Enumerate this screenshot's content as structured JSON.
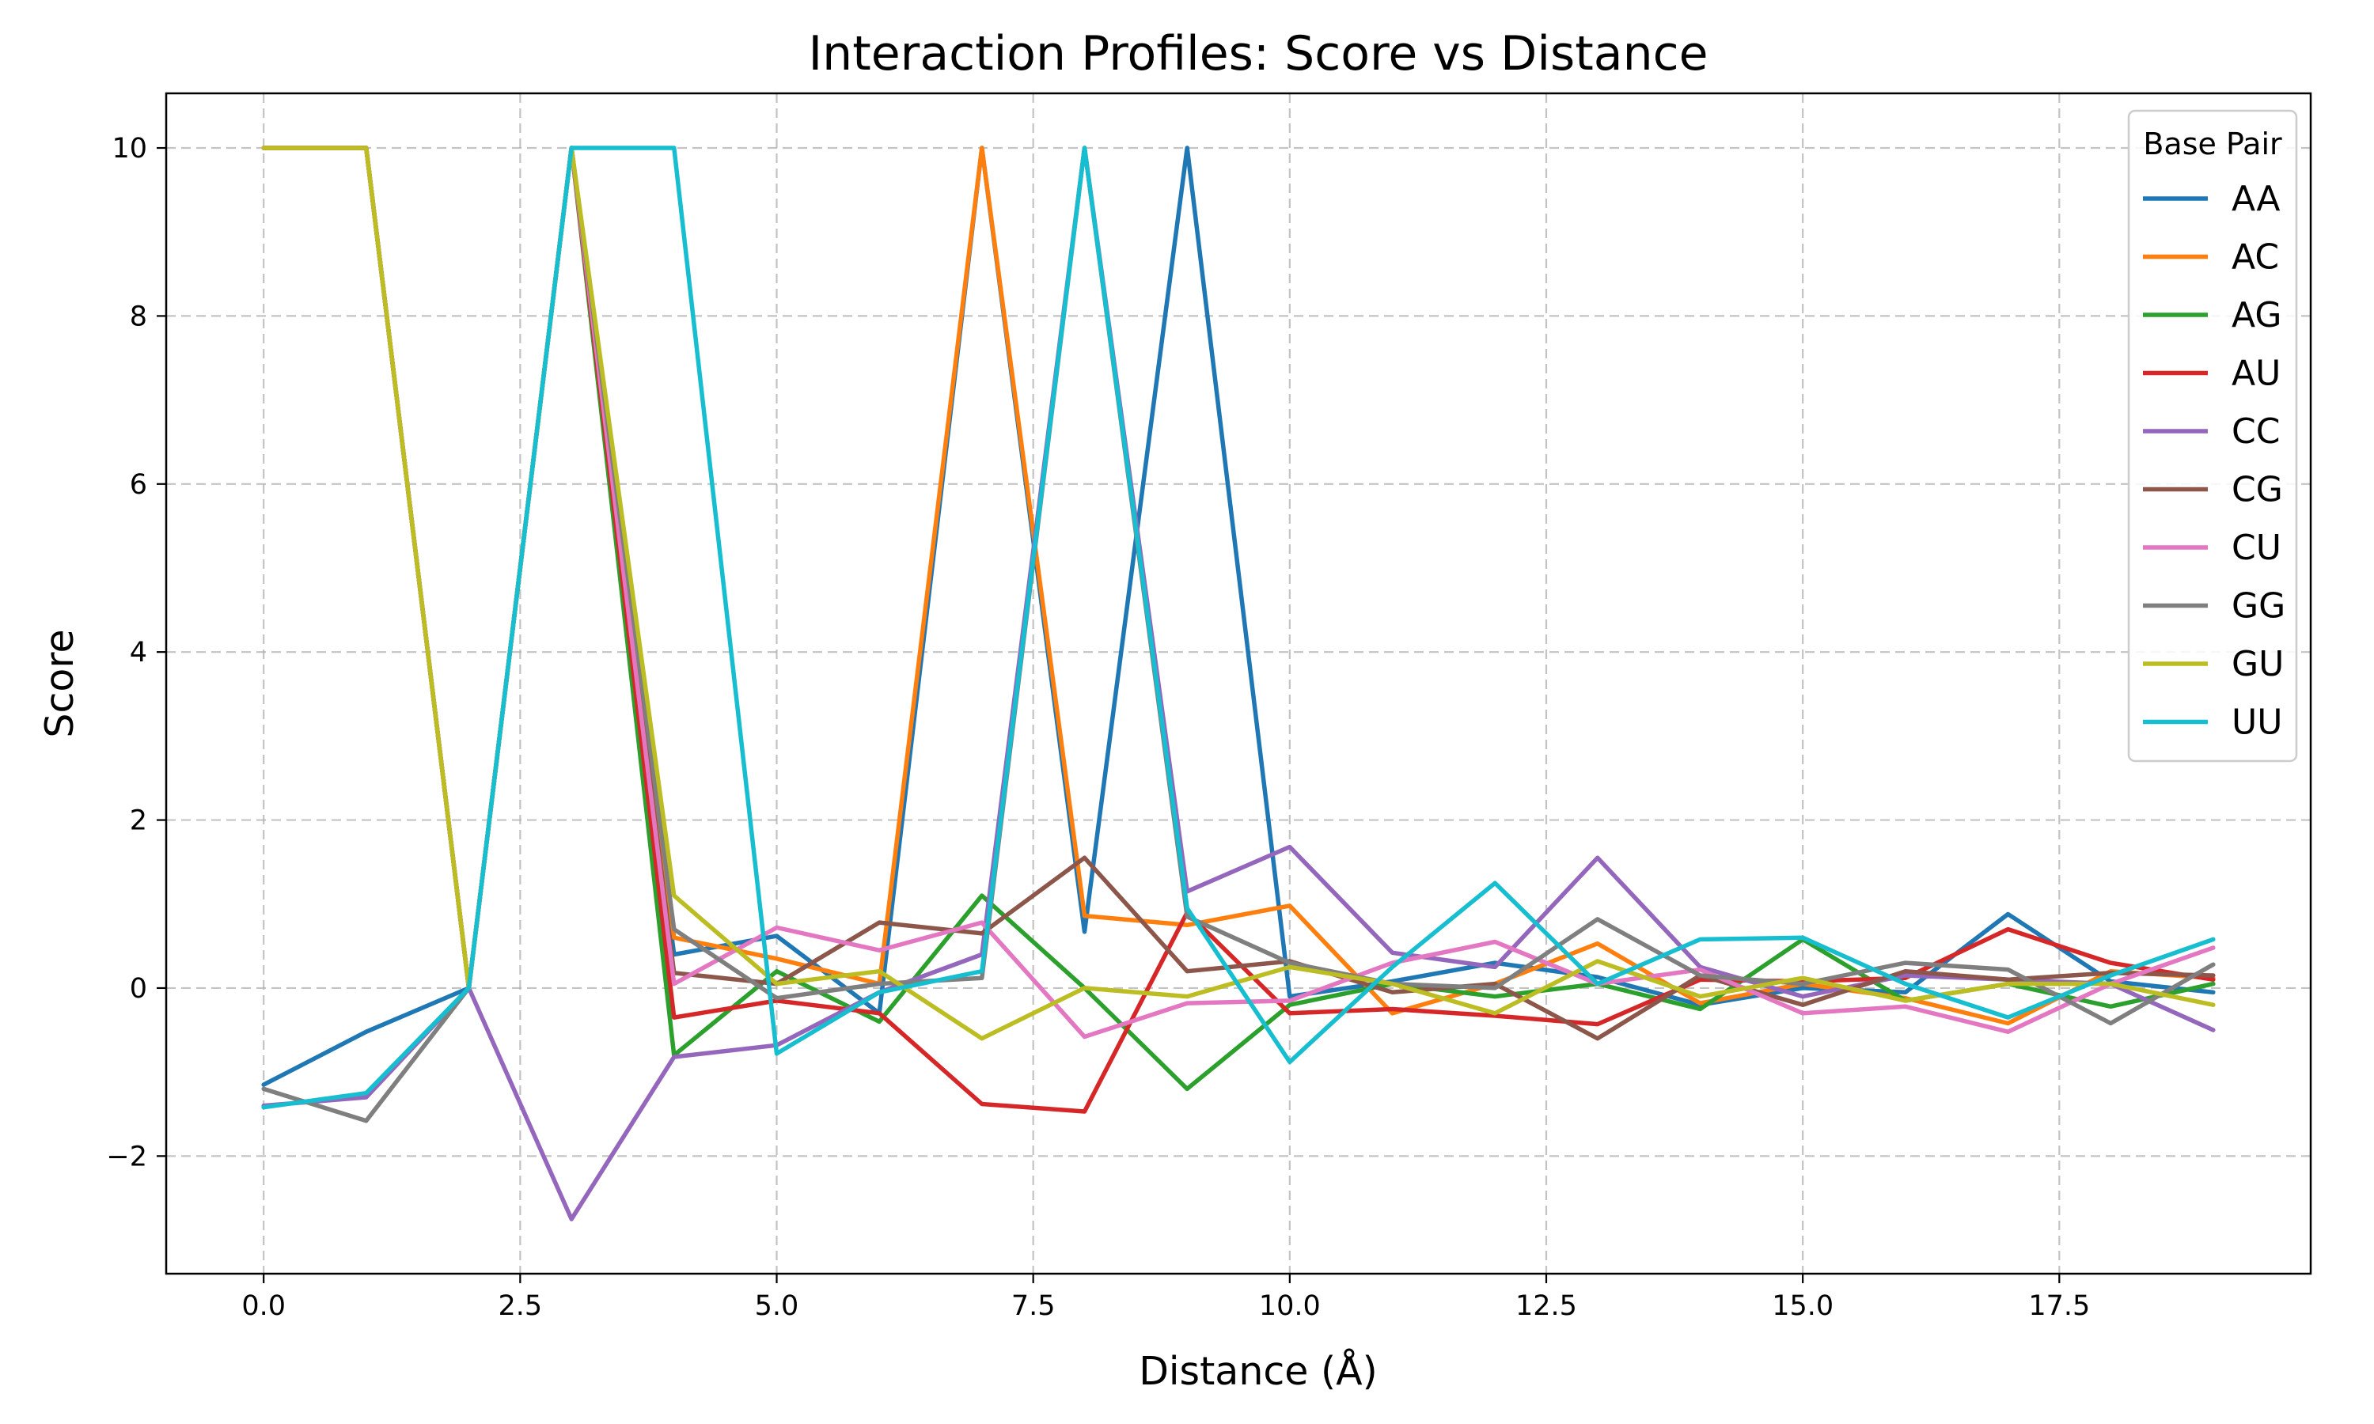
{
  "chart_data": {
    "type": "line",
    "title": "Interaction Profiles: Score vs Distance",
    "xlabel": "Distance (Å)",
    "ylabel": "Score",
    "xlim": [
      -0.95,
      19.95
    ],
    "ylim": [
      -3.4,
      10.65
    ],
    "xticks": [
      0,
      2.5,
      5,
      7.5,
      10,
      12.5,
      15,
      17.5
    ],
    "xtick_labels": [
      "0.0",
      "2.5",
      "5.0",
      "7.5",
      "10.0",
      "12.5",
      "15.0",
      "17.5"
    ],
    "yticks": [
      -2,
      0,
      2,
      4,
      6,
      8,
      10
    ],
    "ytick_labels": [
      "−2",
      "0",
      "2",
      "4",
      "6",
      "8",
      "10"
    ],
    "grid": true,
    "legend": {
      "title": "Base Pair",
      "position": "top-right"
    },
    "x": [
      0,
      1,
      2,
      3,
      4,
      5,
      6,
      7,
      8,
      9,
      10,
      11,
      12,
      13,
      14,
      15,
      16,
      17,
      18,
      19
    ],
    "series": [
      {
        "name": "AA",
        "color": "#1f77b4",
        "values": [
          -1.15,
          -0.52,
          0,
          10,
          0.4,
          0.62,
          -0.3,
          10,
          0.67,
          10,
          -0.1,
          0.08,
          0.3,
          0.13,
          -0.2,
          0,
          -0.05,
          0.88,
          0.08,
          -0.05
        ]
      },
      {
        "name": "AC",
        "color": "#ff7f0e",
        "values": [
          10,
          10,
          0,
          10,
          0.6,
          0.35,
          0.05,
          10,
          0.86,
          0.75,
          0.98,
          -0.3,
          0.05,
          0.53,
          -0.18,
          0.05,
          -0.12,
          -0.42,
          0.2,
          0.12
        ]
      },
      {
        "name": "AG",
        "color": "#2ca02c",
        "values": [
          10,
          10,
          0,
          10,
          -0.8,
          0.2,
          -0.4,
          1.1,
          0,
          -1.2,
          -0.2,
          0.05,
          -0.1,
          0.05,
          -0.25,
          0.58,
          -0.15,
          0.05,
          -0.22,
          0.05
        ]
      },
      {
        "name": "AU",
        "color": "#d62728",
        "values": [
          10,
          10,
          0,
          10,
          -0.35,
          -0.15,
          -0.3,
          -1.38,
          -1.47,
          0.9,
          -0.3,
          -0.25,
          -0.33,
          -0.43,
          0.1,
          0.08,
          0.12,
          0.7,
          0.3,
          0.1
        ]
      },
      {
        "name": "CC",
        "color": "#9467bd",
        "values": [
          -1.4,
          -1.3,
          0,
          -2.75,
          -0.82,
          -0.68,
          -0.05,
          0.4,
          10,
          1.15,
          1.68,
          0.42,
          0.25,
          1.55,
          0.25,
          -0.1,
          0.15,
          0.1,
          0.05,
          -0.5
        ]
      },
      {
        "name": "CG",
        "color": "#8c564b",
        "values": [
          10,
          10,
          0,
          10,
          0.18,
          0.05,
          0.78,
          0.65,
          1.55,
          0.2,
          0.32,
          -0.05,
          0.05,
          -0.6,
          0.15,
          -0.2,
          0.2,
          0.1,
          0.18,
          0.15
        ]
      },
      {
        "name": "CU",
        "color": "#e377c2",
        "values": [
          10,
          10,
          0,
          10,
          0.05,
          0.72,
          0.45,
          0.78,
          -0.58,
          -0.18,
          -0.15,
          0.3,
          0.55,
          0.05,
          0.22,
          -0.3,
          -0.22,
          -0.52,
          0.05,
          0.48
        ]
      },
      {
        "name": "GG",
        "color": "#7f7f7f",
        "values": [
          -1.2,
          -1.58,
          0,
          10,
          0.7,
          -0.12,
          0.05,
          0.12,
          10,
          0.85,
          0.3,
          0.05,
          0,
          0.82,
          0.15,
          0.05,
          0.3,
          0.22,
          -0.42,
          0.28
        ]
      },
      {
        "name": "GU",
        "color": "#bcbd22",
        "values": [
          10,
          10,
          0,
          10,
          1.1,
          0.05,
          0.2,
          -0.6,
          0,
          -0.1,
          0.25,
          0.05,
          -0.3,
          0.32,
          -0.1,
          0.12,
          -0.15,
          0.05,
          0.05,
          -0.2
        ]
      },
      {
        "name": "UU",
        "color": "#17becf",
        "values": [
          -1.42,
          -1.25,
          0,
          10,
          10,
          -0.78,
          -0.05,
          0.2,
          10,
          0.95,
          -0.88,
          0.25,
          1.25,
          0.05,
          0.58,
          0.6,
          0.05,
          -0.35,
          0.15,
          0.58
        ]
      }
    ]
  }
}
